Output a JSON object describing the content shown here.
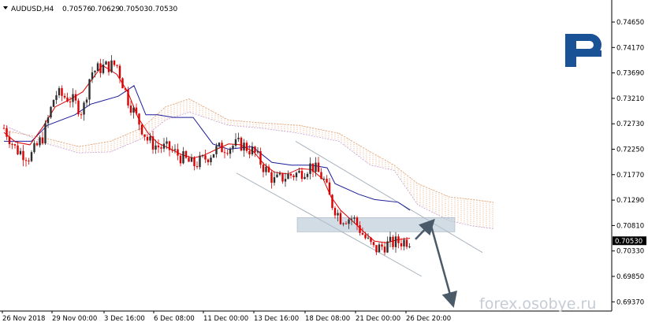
{
  "header": {
    "symbol": "AUDUSD,H4",
    "open": "0.70576",
    "high": "0.70629",
    "low": "0.70503",
    "close": "0.70530"
  },
  "watermark": "forex.osobye.ru",
  "logo": {
    "name": "roboforex-logo-icon",
    "color": "#1a5296"
  },
  "colors": {
    "bull": "#2e2e2e",
    "bear": "#dd0000",
    "tenkan": "#dd0000",
    "kijun": "#1c1c9c",
    "chikou": "#3c8c3c",
    "cloud_a": "#e0a070",
    "cloud_b": "#c8a0d8",
    "channel": "#a8b4bf",
    "zone": "#b4c4d4",
    "arrow": "#4a5a68"
  },
  "chart_data": {
    "type": "candlestick",
    "current_price_label": "0.70530",
    "ylim": [
      0.6937,
      0.7484
    ],
    "y_ticks": [
      "0.74650",
      "0.74170",
      "0.73690",
      "0.73210",
      "0.72730",
      "0.72250",
      "0.71770",
      "0.71290",
      "0.70810",
      "0.70330",
      "0.69850",
      "0.69370"
    ],
    "x_ticks": [
      "26 Nov 2018",
      "29 Nov 00:00",
      "3 Dec 16:00",
      "6 Dec 08:00",
      "11 Dec 00:00",
      "13 Dec 16:00",
      "18 Dec 08:00",
      "21 Dec 00:00",
      "26 Dec 20:00"
    ],
    "support_zone": [
      0.7075,
      0.709
    ]
  }
}
